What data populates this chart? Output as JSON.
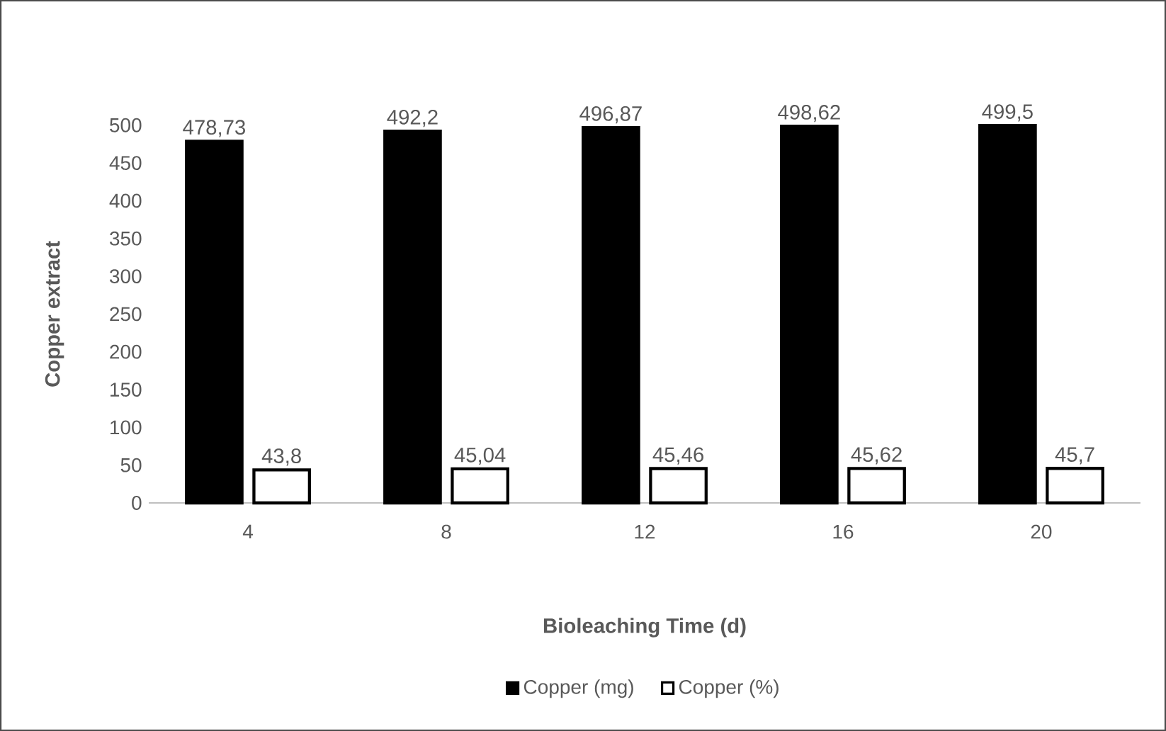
{
  "chart_data": {
    "type": "bar",
    "xlabel": "Bioleaching Time (d)",
    "ylabel": "Copper extract",
    "categories": [
      "4",
      "8",
      "12",
      "16",
      "20"
    ],
    "series": [
      {
        "name": "Copper (mg)",
        "color": "#000000",
        "values": [
          478.73,
          492.2,
          496.87,
          498.62,
          499.5
        ],
        "value_labels": [
          "478,73",
          "492,2",
          "496,87",
          "498,62",
          "499,5"
        ]
      },
      {
        "name": "Copper (%)",
        "color": "#ffffff",
        "values": [
          43.8,
          45.04,
          45.46,
          45.62,
          45.7
        ],
        "value_labels": [
          "43,8",
          "45,04",
          "45,46",
          "45,62",
          "45,7"
        ]
      }
    ],
    "ylim": [
      0,
      500
    ],
    "yticks": [
      0,
      50,
      100,
      150,
      200,
      250,
      300,
      350,
      400,
      450,
      500
    ],
    "legend": "bottom"
  }
}
